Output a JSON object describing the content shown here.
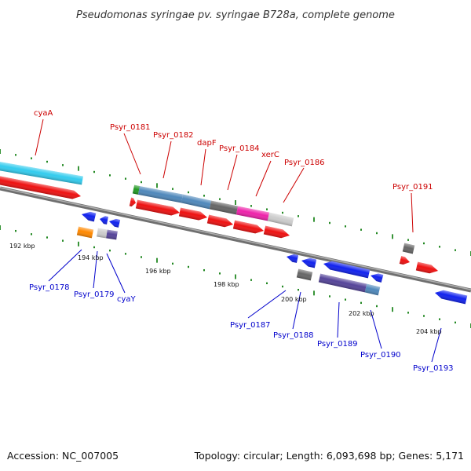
{
  "title": "Pseudomonas syringae pv. syringae B728a, complete genome",
  "accession": "Accession: NC_007005",
  "summary": "Topology: circular; Length: 6,093,698 bp; Genes: 5,171",
  "colors": {
    "top_strand_label": "#cc0000",
    "bottom_strand_label": "#0000cc",
    "tick": "#228822",
    "backbone": "#888888",
    "cds_red": "#ee1111",
    "cds_blue": "#1122ee",
    "cyan": "#33ccee",
    "steel": "#4f88bb",
    "gray": "#666666",
    "magenta": "#ee22aa",
    "lightgray": "#cccccc",
    "purple": "#554499",
    "orange": "#ff8800",
    "green": "#229922"
  },
  "scale_labels": [
    {
      "text": "192 kbp"
    },
    {
      "text": "194 kbp"
    },
    {
      "text": "196 kbp"
    },
    {
      "text": "198 kbp"
    },
    {
      "text": "200 kbp"
    },
    {
      "text": "202 kbp"
    },
    {
      "text": "204 kbp"
    }
  ],
  "top_strand_genes": [
    {
      "name": "cyaA"
    },
    {
      "name": "Psyr_0181"
    },
    {
      "name": "Psyr_0182"
    },
    {
      "name": "dapF"
    },
    {
      "name": "Psyr_0184"
    },
    {
      "name": "xerC"
    },
    {
      "name": "Psyr_0186"
    },
    {
      "name": "Psyr_0191"
    }
  ],
  "bottom_strand_genes": [
    {
      "name": "Psyr_0178"
    },
    {
      "name": "Psyr_0179"
    },
    {
      "name": "cyaY"
    },
    {
      "name": "Psyr_0187"
    },
    {
      "name": "Psyr_0188"
    },
    {
      "name": "Psyr_0189"
    },
    {
      "name": "Psyr_0190"
    },
    {
      "name": "Psyr_0193"
    }
  ]
}
